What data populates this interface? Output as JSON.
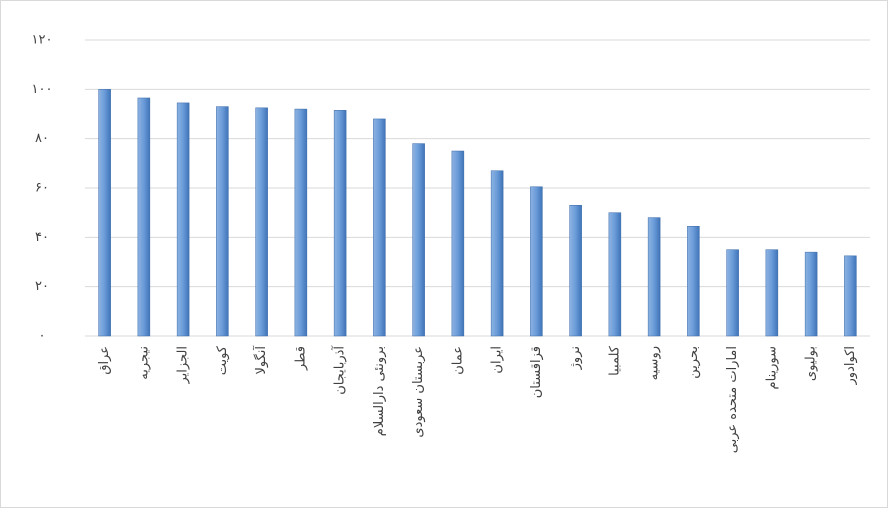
{
  "chart_data": {
    "type": "bar",
    "categories": [
      "عراق",
      "نیجریه",
      "الجزایر",
      "کویت",
      "آنگولا",
      "قطر",
      "آذربایجان",
      "برونئی دارالسلام",
      "عربستان سعودی",
      "عمان",
      "ایران",
      "قزاقستان",
      "نروژ",
      "کلمبیا",
      "روسیه",
      "بحرین",
      "امارات متحده عربی",
      "سورینام",
      "بولیوی",
      "اکوادور"
    ],
    "values": [
      100,
      96.5,
      94.5,
      93,
      92.5,
      92,
      91.5,
      88,
      78,
      75,
      67,
      60.5,
      53,
      50,
      48,
      44.5,
      35,
      35,
      34,
      32.5
    ],
    "color": "#5b8fd0",
    "ylim": [
      0,
      120
    ],
    "yticks": [
      {
        "value": 0,
        "label": "۰"
      },
      {
        "value": 20,
        "label": "۲۰"
      },
      {
        "value": 40,
        "label": "۴۰"
      },
      {
        "value": 60,
        "label": "۶۰"
      },
      {
        "value": 80,
        "label": "۸۰"
      },
      {
        "value": 100,
        "label": "۱۰۰"
      },
      {
        "value": 120,
        "label": "۱۲۰"
      }
    ],
    "grid": true
  }
}
